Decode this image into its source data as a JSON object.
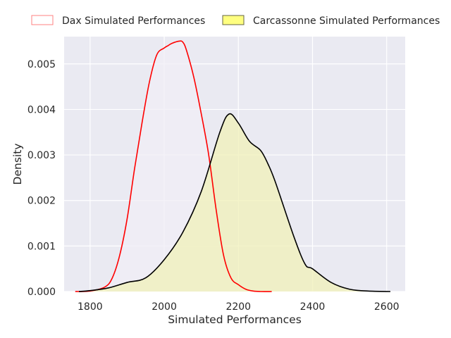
{
  "chart_data": {
    "type": "area",
    "title": "",
    "xlabel": "Simulated Performances",
    "ylabel": "Density",
    "xlim": [
      1730,
      2650
    ],
    "ylim": [
      0,
      0.0056
    ],
    "xticks": [
      1800,
      2000,
      2200,
      2400,
      2600
    ],
    "yticks": [
      0.0,
      0.001,
      0.002,
      0.003,
      0.004,
      0.005
    ],
    "ytick_labels": [
      "0.000",
      "0.001",
      "0.002",
      "0.003",
      "0.004",
      "0.005"
    ],
    "grid": true,
    "legend_position": "top",
    "series": [
      {
        "name": "Dax Simulated Performances",
        "line_color": "#ff0000",
        "fill_color": "#f0eef6",
        "legend_edge": "#ff8080",
        "legend_fill": "#ffffff",
        "x": [
          1760,
          1800,
          1840,
          1860,
          1880,
          1900,
          1920,
          1940,
          1960,
          1980,
          2000,
          2010,
          2020,
          2040,
          2050,
          2060,
          2080,
          2100,
          2120,
          2140,
          2160,
          2180,
          2200,
          2220,
          2240,
          2260,
          2290
        ],
        "y": [
          0.0,
          1e-05,
          0.0001,
          0.0003,
          0.0008,
          0.0016,
          0.0027,
          0.0037,
          0.0046,
          0.0052,
          0.00535,
          0.0054,
          0.00545,
          0.0055,
          0.00548,
          0.0053,
          0.0047,
          0.0039,
          0.003,
          0.0018,
          0.0008,
          0.0003,
          0.00015,
          5e-05,
          1e-05,
          0.0,
          0.0
        ]
      },
      {
        "name": "Carcassonne Simulated Performances",
        "line_color": "#000000",
        "fill_color": "#f0f0b8",
        "legend_edge": "#666644",
        "legend_fill": "#ffff80",
        "x": [
          1770,
          1800,
          1850,
          1900,
          1950,
          2000,
          2050,
          2100,
          2150,
          2175,
          2200,
          2230,
          2260,
          2280,
          2300,
          2350,
          2380,
          2400,
          2450,
          2500,
          2550,
          2610
        ],
        "y": [
          0.0,
          2e-05,
          8e-05,
          0.0002,
          0.0003,
          0.0007,
          0.0013,
          0.0022,
          0.0035,
          0.0039,
          0.0037,
          0.0033,
          0.0031,
          0.0028,
          0.0024,
          0.0012,
          0.0006,
          0.0005,
          0.0002,
          5e-05,
          1e-05,
          0.0
        ]
      }
    ]
  }
}
